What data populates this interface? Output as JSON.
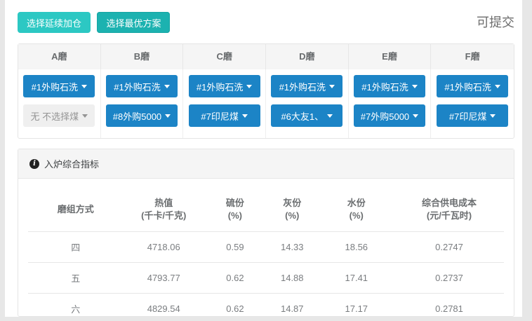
{
  "toolbar": {
    "btn_continue": "选择延续加仓",
    "btn_optimal": "选择最优方案",
    "status": "可提交"
  },
  "icons": {
    "info_glyph": "i"
  },
  "colors": {
    "teal": "#2cc8c3",
    "teal_active": "#1cb2b0",
    "blue": "#1c84c6",
    "header_bg": "#f5f5f5",
    "text_gray": "#6a6d6f"
  },
  "mills": {
    "columns": [
      {
        "name": "A磨",
        "selects": [
          {
            "label": "#1外购石洗",
            "disabled": false
          },
          {
            "label": "无 不选择煤",
            "disabled": true
          }
        ]
      },
      {
        "name": "B磨",
        "selects": [
          {
            "label": "#1外购石洗",
            "disabled": false
          },
          {
            "label": "#8外购5000",
            "disabled": false
          }
        ]
      },
      {
        "name": "C磨",
        "selects": [
          {
            "label": "#1外购石洗",
            "disabled": false
          },
          {
            "label": "#7印尼煤",
            "disabled": false
          }
        ]
      },
      {
        "name": "D磨",
        "selects": [
          {
            "label": "#1外购石洗",
            "disabled": false
          },
          {
            "label": "#6大友1、",
            "disabled": false
          }
        ]
      },
      {
        "name": "E磨",
        "selects": [
          {
            "label": "#1外购石洗",
            "disabled": false
          },
          {
            "label": "#7外购5000",
            "disabled": false
          }
        ]
      },
      {
        "name": "F磨",
        "selects": [
          {
            "label": "#1外购石洗",
            "disabled": false
          },
          {
            "label": "#7印尼煤",
            "disabled": false
          }
        ]
      }
    ]
  },
  "indicators": {
    "title": "入炉综合指标",
    "table": {
      "headers": [
        {
          "main": "磨组方式",
          "sub": ""
        },
        {
          "main": "热值",
          "sub": "(千卡/千克)"
        },
        {
          "main": "硫份",
          "sub": "(%)"
        },
        {
          "main": "灰份",
          "sub": "(%)"
        },
        {
          "main": "水份",
          "sub": "(%)"
        },
        {
          "main": "综合供电成本",
          "sub": "(元/千瓦时)"
        }
      ],
      "col_widths": [
        "20%",
        "17%",
        "13%",
        "11%",
        "16%",
        "23%"
      ],
      "rows": [
        {
          "label": "四",
          "values": [
            "4718.06",
            "0.59",
            "14.33",
            "18.56",
            "0.2747"
          ]
        },
        {
          "label": "五",
          "values": [
            "4793.77",
            "0.62",
            "14.88",
            "17.41",
            "0.2737"
          ]
        },
        {
          "label": "六",
          "values": [
            "4829.54",
            "0.62",
            "14.87",
            "17.17",
            "0.2781"
          ]
        }
      ]
    }
  }
}
